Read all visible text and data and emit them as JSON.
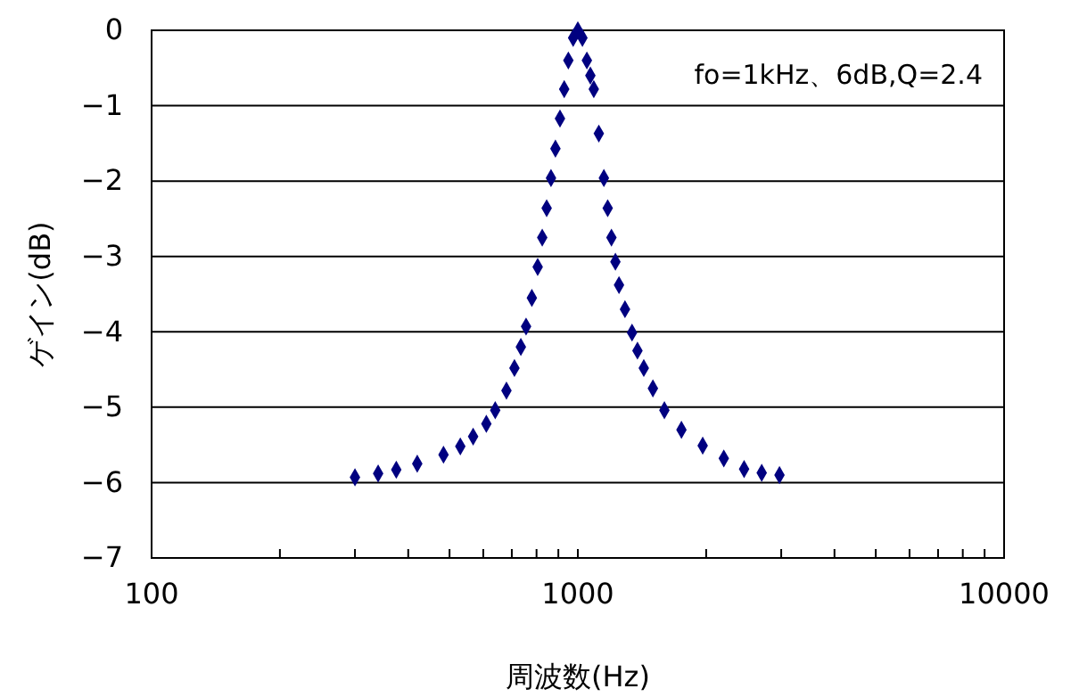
{
  "chart_data": {
    "type": "scatter",
    "xlabel": "周波数(Hz)",
    "ylabel": "ゲイン(dB)",
    "log": "x",
    "grid": "y",
    "marker": "diamond",
    "annotations": [
      "fo=1kHz、6dB,Q=2.4"
    ],
    "xlim": [
      100,
      10000
    ],
    "xticks": [
      100,
      {
        "value": 200,
        "label": null
      },
      {
        "value": 300,
        "label": null
      },
      {
        "value": 400,
        "label": null
      },
      {
        "value": 500,
        "label": null
      },
      {
        "value": 600,
        "label": null
      },
      {
        "value": 700,
        "label": null
      },
      {
        "value": 800,
        "label": null
      },
      {
        "value": 900,
        "label": null
      },
      1000,
      {
        "value": 2000,
        "label": null
      },
      {
        "value": 3000,
        "label": null
      },
      {
        "value": 4000,
        "label": null
      },
      {
        "value": 5000,
        "label": null
      },
      {
        "value": 6000,
        "label": null
      },
      {
        "value": 7000,
        "label": null
      },
      {
        "value": 8000,
        "label": null
      },
      {
        "value": 9000,
        "label": null
      },
      10000
    ],
    "ylim": [
      -7,
      0
    ],
    "yticks": [
      -7,
      -6,
      -5,
      -4,
      -3,
      -2,
      -1,
      0
    ],
    "x": [
      300,
      340,
      375,
      420,
      484,
      530,
      568,
      610,
      640,
      680,
      710,
      735,
      756,
      780,
      805,
      825,
      845,
      865,
      886,
      908,
      929,
      950,
      975,
      1000,
      1025,
      1050,
      1070,
      1090,
      1120,
      1151,
      1175,
      1199,
      1225,
      1249,
      1290,
      1340,
      1380,
      1428,
      1500,
      1596,
      1750,
      1963,
      2200,
      2455,
      2700,
      2972
    ],
    "series": [
      {
        "color": "#000080",
        "values": [
          -5.93,
          -5.88,
          -5.83,
          -5.75,
          -5.63,
          -5.52,
          -5.39,
          -5.22,
          -5.04,
          -4.78,
          -4.48,
          -4.2,
          -3.93,
          -3.55,
          -3.14,
          -2.75,
          -2.36,
          -1.96,
          -1.57,
          -1.17,
          -0.78,
          -0.4,
          -0.1,
          0,
          -0.1,
          -0.4,
          -0.6,
          -0.78,
          -1.37,
          -1.96,
          -2.36,
          -2.75,
          -3.07,
          -3.38,
          -3.7,
          -4.01,
          -4.25,
          -4.48,
          -4.75,
          -5.04,
          -5.3,
          -5.51,
          -5.68,
          -5.82,
          -5.87,
          -5.9
        ]
      }
    ]
  }
}
